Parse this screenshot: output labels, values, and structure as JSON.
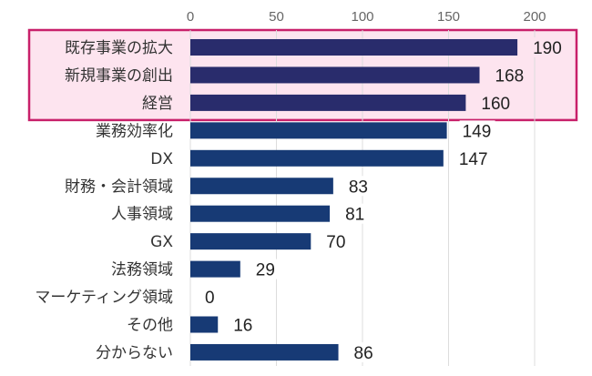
{
  "chart_data": {
    "type": "bar",
    "orientation": "horizontal",
    "title": "",
    "xlabel": "",
    "ylabel": "",
    "xlim": [
      0,
      220
    ],
    "x_ticks": [
      0,
      50,
      100,
      150,
      200
    ],
    "x_tick_labels": [
      "0",
      "50",
      "100",
      "150",
      "200"
    ],
    "grid": true,
    "axis_position": "top",
    "categories": [
      "既存事業の拡大",
      "新規事業の創出",
      "経営",
      "業務効率化",
      "DX",
      "財務・会計領域",
      "人事領域",
      "GX",
      "法務領域",
      "マーケティング領域",
      "その他",
      "分からない"
    ],
    "values": [
      190,
      168,
      160,
      149,
      147,
      83,
      81,
      70,
      29,
      0,
      16,
      86
    ],
    "value_labels": [
      "190",
      "168",
      "160",
      "149",
      "147",
      "83",
      "81",
      "70",
      "29",
      "0",
      "16",
      "86"
    ],
    "highlighted_categories": [
      "既存事業の拡大",
      "新規事業の創出",
      "経営"
    ],
    "colors": {
      "bar": "#173a75",
      "bar_highlighted": "#292c6c",
      "highlight_border": "#c8206a",
      "highlight_fill": "#fde4ef",
      "gridline": "#dddddd"
    }
  }
}
